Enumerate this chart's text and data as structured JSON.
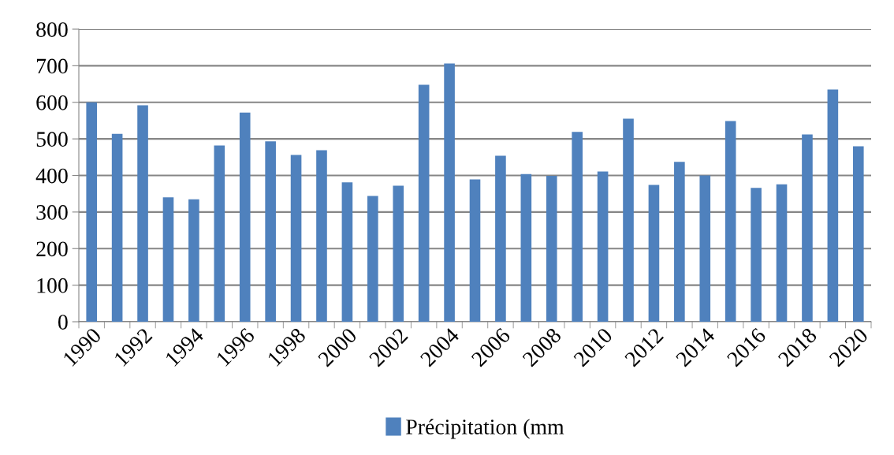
{
  "chart_data": {
    "type": "bar",
    "categories": [
      "1990",
      null,
      "1992",
      null,
      "1994",
      null,
      "1996",
      null,
      "1998",
      null,
      "2000",
      null,
      "2002",
      null,
      "2004",
      null,
      "2006",
      null,
      "2008",
      null,
      "2010",
      null,
      "2012",
      null,
      "2014",
      null,
      "2016",
      null,
      "2018",
      null,
      "2020"
    ],
    "series": [
      {
        "name": "Précipitation (mm",
        "color": "#4f81bd",
        "values": [
          600,
          514,
          592,
          340,
          335,
          482,
          572,
          493,
          456,
          469,
          381,
          344,
          372,
          648,
          706,
          389,
          454,
          404,
          399,
          519,
          411,
          555,
          374,
          437,
          400,
          549,
          366,
          376,
          512,
          635,
          480
        ]
      }
    ],
    "ylim": [
      0,
      800
    ],
    "yticks": [
      0,
      100,
      200,
      300,
      400,
      500,
      600,
      700,
      800
    ],
    "grid": "y",
    "legend": "bottom"
  }
}
